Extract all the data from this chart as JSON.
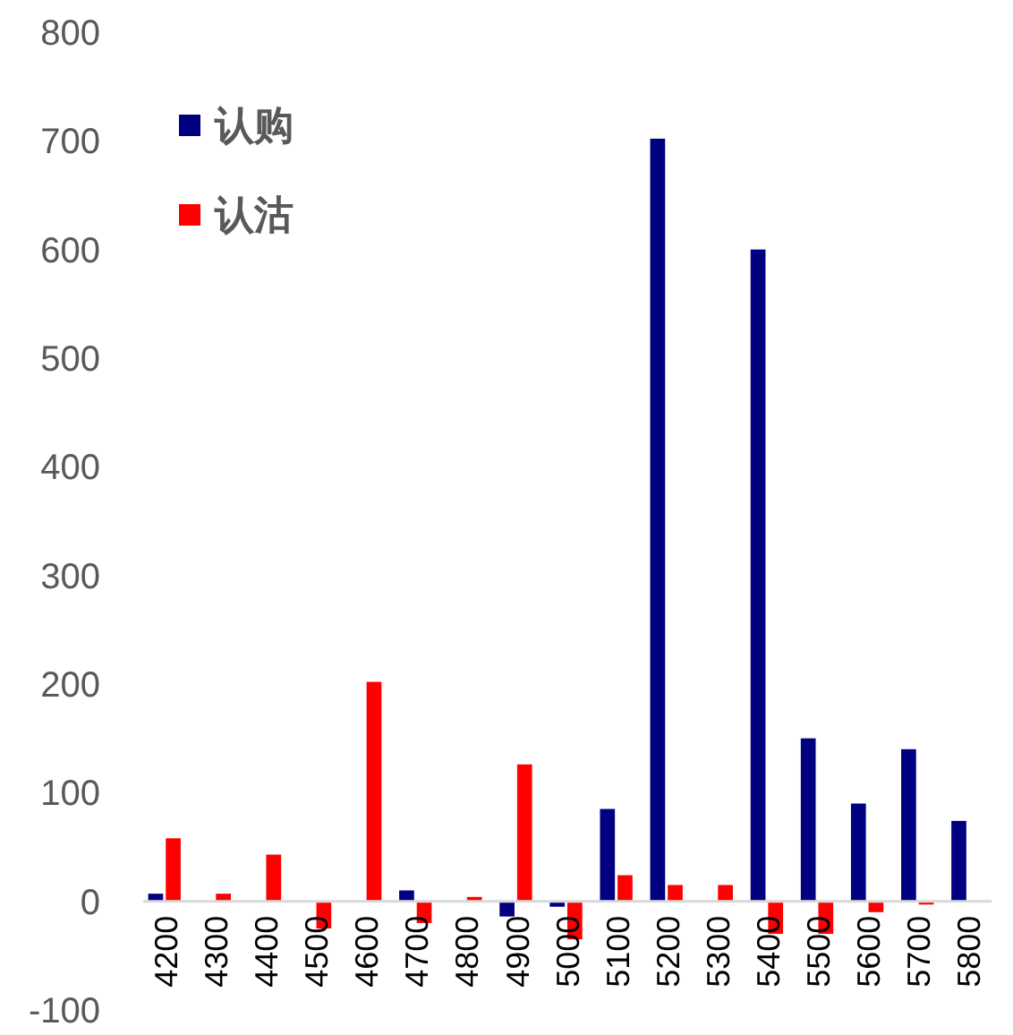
{
  "chart_data": {
    "type": "bar",
    "categories": [
      "4200",
      "4300",
      "4400",
      "4500",
      "4600",
      "4700",
      "4800",
      "4900",
      "5000",
      "5100",
      "5200",
      "5300",
      "5400",
      "5500",
      "5600",
      "5700",
      "5800"
    ],
    "series": [
      {
        "name": "认购",
        "color": "#000080",
        "values": [
          7,
          0,
          0,
          0,
          0,
          10,
          0,
          -14,
          -5,
          85,
          702,
          0,
          600,
          150,
          90,
          140,
          74
        ]
      },
      {
        "name": "认沽",
        "color": "#ff0000",
        "values": [
          58,
          7,
          43,
          -25,
          202,
          -20,
          4,
          126,
          -35,
          24,
          15,
          15,
          -30,
          -30,
          -10,
          -3,
          0
        ]
      }
    ],
    "ylim": [
      -100,
      800
    ],
    "yticks": [
      -100,
      0,
      100,
      200,
      300,
      400,
      500,
      600,
      700,
      800
    ],
    "grid": false,
    "legend": "top left"
  }
}
